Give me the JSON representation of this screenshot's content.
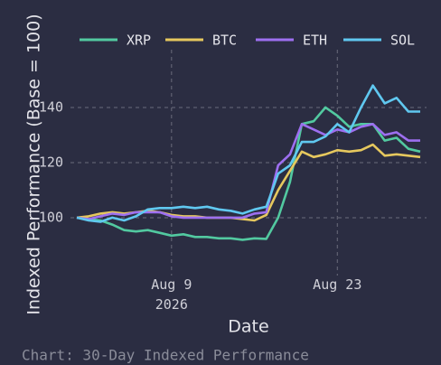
{
  "chart_data": {
    "type": "line",
    "title": "Chart: 30-Day Indexed Performance",
    "x_label": "Date",
    "y_label": "Indexed Performance (Base = 100)",
    "x": [
      "2026-08-01",
      "2026-08-02",
      "2026-08-03",
      "2026-08-04",
      "2026-08-05",
      "2026-08-06",
      "2026-08-07",
      "2026-08-08",
      "2026-08-09",
      "2026-08-10",
      "2026-08-11",
      "2026-08-12",
      "2026-08-13",
      "2026-08-14",
      "2026-08-15",
      "2026-08-16",
      "2026-08-17",
      "2026-08-18",
      "2026-08-19",
      "2026-08-20",
      "2026-08-21",
      "2026-08-22",
      "2026-08-23",
      "2026-08-24",
      "2026-08-25",
      "2026-08-26",
      "2026-08-27",
      "2026-08-28",
      "2026-08-29",
      "2026-08-30"
    ],
    "series": [
      {
        "name": "XRP",
        "color": "#52c9a0",
        "values": [
          100,
          99.5,
          99,
          97.5,
          95.5,
          95,
          95.5,
          94.5,
          93.5,
          94,
          93,
          93,
          92.5,
          92.5,
          92,
          92.5,
          92.3,
          100,
          113,
          134,
          135,
          140,
          137,
          133,
          134,
          134,
          128,
          129,
          125,
          124
        ]
      },
      {
        "name": "BTC",
        "color": "#e6c85e",
        "values": [
          100,
          100.5,
          101.5,
          102,
          101.5,
          102,
          102.5,
          102,
          101,
          100.5,
          100.5,
          100,
          100,
          100,
          99.5,
          99,
          101,
          110,
          117,
          124,
          122,
          123,
          124.5,
          124,
          124.5,
          126.5,
          122.5,
          123,
          122.5,
          122
        ]
      },
      {
        "name": "ETH",
        "color": "#9d6ff0",
        "values": [
          100,
          99.5,
          100.5,
          101.5,
          101,
          102,
          102,
          102,
          100.5,
          100,
          100,
          100,
          100,
          100,
          100,
          101.5,
          102,
          119,
          123,
          134,
          132,
          130,
          132,
          131,
          133,
          134,
          130,
          131,
          128,
          128
        ]
      },
      {
        "name": "SOL",
        "color": "#60c8f0",
        "values": [
          100,
          99,
          98.5,
          100,
          99,
          100.5,
          103,
          103.5,
          103.5,
          104,
          103.5,
          104,
          103,
          102.5,
          101.5,
          103,
          104,
          116,
          119,
          127.5,
          127.5,
          129.5,
          134,
          131,
          140,
          148,
          141.5,
          143.5,
          138.5,
          138.5
        ]
      }
    ],
    "xlim": [
      "2026-08-01",
      "2026-08-30"
    ],
    "xticks": [
      {
        "value": "2026-08-09",
        "label": "Aug 9\n2026"
      },
      {
        "value": "2026-08-23",
        "label": "Aug 23"
      }
    ],
    "ylim": [
      79,
      167
    ],
    "yticks": [
      100,
      120,
      140
    ],
    "grid": true,
    "legend": "top"
  }
}
